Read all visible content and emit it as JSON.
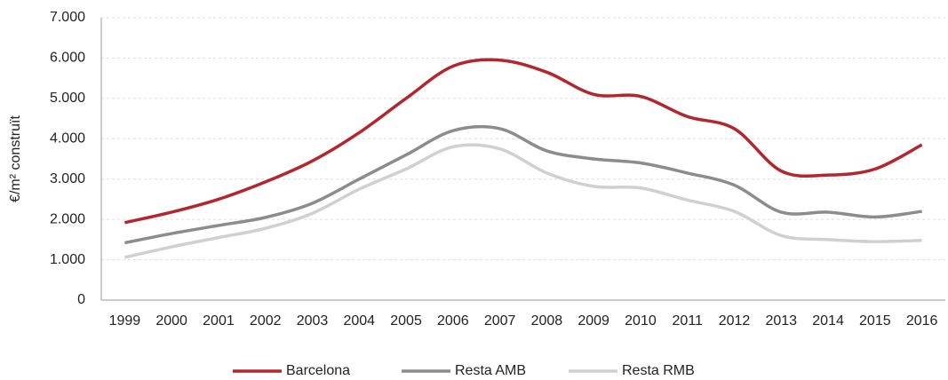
{
  "chart_data": {
    "type": "line",
    "ylabel": "€/m² construït",
    "categories": [
      "1999",
      "2000",
      "2001",
      "2002",
      "2003",
      "2004",
      "2005",
      "2006",
      "2007",
      "2008",
      "2009",
      "2010",
      "2011",
      "2012",
      "2013",
      "2014",
      "2015",
      "2016"
    ],
    "series": [
      {
        "name": "Barcelona",
        "color": "#b3262e",
        "values": [
          1920,
          2180,
          2500,
          2930,
          3450,
          4150,
          5000,
          5800,
          5950,
          5650,
          5100,
          5050,
          4550,
          4250,
          3200,
          3100,
          3250,
          3850
        ]
      },
      {
        "name": "Resta AMB",
        "color": "#8c8c8c",
        "values": [
          1420,
          1650,
          1850,
          2050,
          2400,
          3000,
          3600,
          4200,
          4250,
          3700,
          3500,
          3400,
          3150,
          2850,
          2180,
          2180,
          2060,
          2200
        ]
      },
      {
        "name": "Resta RMB",
        "color": "#d0d0d0",
        "values": [
          1060,
          1320,
          1550,
          1780,
          2150,
          2750,
          3250,
          3800,
          3750,
          3150,
          2820,
          2780,
          2480,
          2200,
          1600,
          1500,
          1450,
          1480
        ]
      }
    ],
    "ylim": [
      0,
      7000
    ],
    "yticks": [
      0,
      {
        "value": 1000,
        "label": "1.000"
      },
      {
        "value": 2000,
        "label": "2.000"
      },
      {
        "value": 3000,
        "label": "3.000"
      },
      {
        "value": 4000,
        "label": "4.000"
      },
      {
        "value": 5000,
        "label": "5.000"
      },
      {
        "value": 6000,
        "label": "6.000"
      },
      {
        "value": 7000,
        "label": "7.000"
      }
    ],
    "grid": true,
    "legend": "bottom"
  }
}
